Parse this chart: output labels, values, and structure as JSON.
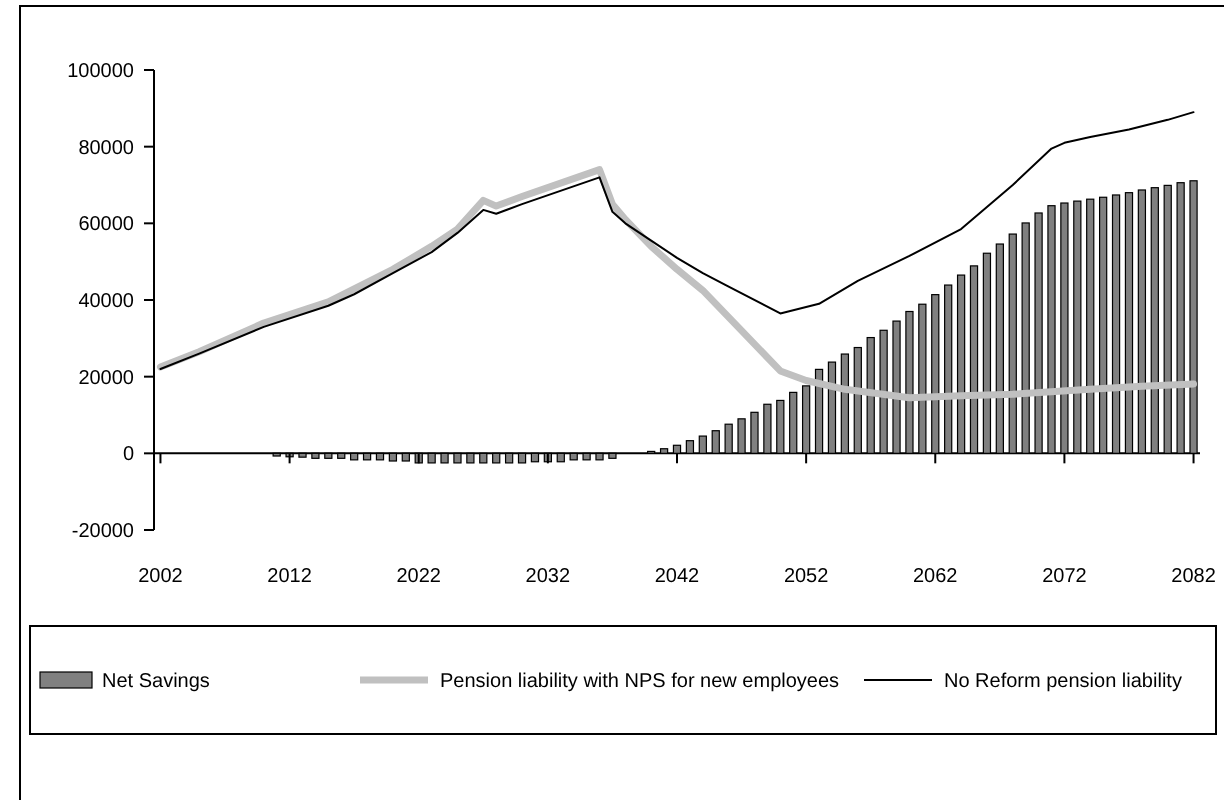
{
  "chart_data": {
    "type": "bar",
    "series": [
      {
        "name": "Net Savings",
        "color": "#808080",
        "x": [
          2011,
          2012,
          2013,
          2014,
          2015,
          2016,
          2017,
          2018,
          2019,
          2020,
          2021,
          2022,
          2023,
          2024,
          2025,
          2026,
          2027,
          2028,
          2029,
          2030,
          2031,
          2032,
          2033,
          2034,
          2035,
          2036,
          2037,
          2040,
          2041,
          2042,
          2043,
          2044,
          2045,
          2046,
          2047,
          2048,
          2049,
          2050,
          2051,
          2052,
          2053,
          2054,
          2055,
          2056,
          2057,
          2058,
          2059,
          2060,
          2061,
          2062,
          2063,
          2064,
          2065,
          2066,
          2067,
          2068,
          2069,
          2070,
          2071,
          2072,
          2073,
          2074,
          2075,
          2076,
          2077,
          2078,
          2079,
          2080,
          2081,
          2082
        ],
        "values": [
          -700,
          -900,
          -1000,
          -1300,
          -1300,
          -1300,
          -1700,
          -1700,
          -1700,
          -2000,
          -2000,
          -2500,
          -2500,
          -2500,
          -2500,
          -2500,
          -2500,
          -2500,
          -2500,
          -2500,
          -2200,
          -2200,
          -2200,
          -1700,
          -1700,
          -1700,
          -1300,
          500,
          1200,
          2100,
          3300,
          4500,
          5900,
          7600,
          9000,
          10700,
          12800,
          13800,
          15900,
          17600,
          21900,
          23800,
          25900,
          27600,
          30200,
          32100,
          34500,
          37000,
          38900,
          41400,
          43900,
          46500,
          48900,
          52200,
          54600,
          57200,
          60100,
          62700,
          64600,
          65300,
          65800,
          66300,
          66800,
          67400,
          68000,
          68700,
          69300,
          69900,
          70600,
          71100
        ]
      },
      {
        "name": "Pension liability with NPS for new employees",
        "type": "line",
        "color": "#c0c0c0",
        "x": [
          2002,
          2005,
          2010,
          2015,
          2020,
          2023,
          2025,
          2027,
          2028,
          2030,
          2036,
          2037,
          2038,
          2040,
          2042,
          2044,
          2047,
          2050,
          2052,
          2055,
          2060,
          2064,
          2068,
          2074,
          2078,
          2082
        ],
        "values": [
          22500,
          26500,
          34000,
          39500,
          48000,
          54000,
          58500,
          66000,
          64500,
          67000,
          74000,
          65000,
          61000,
          54000,
          48000,
          42500,
          32000,
          21500,
          19000,
          16700,
          14500,
          15000,
          15400,
          16700,
          17500,
          18100
        ]
      },
      {
        "name": "No Reform pension liability",
        "type": "line",
        "color": "#000000",
        "x": [
          2002,
          2005,
          2010,
          2015,
          2017,
          2020,
          2023,
          2025,
          2027,
          2028,
          2030,
          2036,
          2037,
          2038,
          2040,
          2042,
          2044,
          2046,
          2050,
          2053,
          2056,
          2060,
          2064,
          2068,
          2071,
          2072,
          2074,
          2077,
          2080,
          2082
        ],
        "values": [
          22000,
          26000,
          33000,
          38500,
          41500,
          47000,
          52500,
          57500,
          63500,
          62500,
          65000,
          72000,
          63000,
          60000,
          55500,
          51000,
          47000,
          43500,
          36500,
          39000,
          45000,
          51500,
          58500,
          70000,
          79500,
          81000,
          82500,
          84500,
          87000,
          89000
        ]
      }
    ],
    "xlim": [
      2001.5,
      2082.5
    ],
    "xticks": [
      2002,
      2012,
      2022,
      2032,
      2042,
      2052,
      2062,
      2072,
      2082
    ],
    "ylim": [
      -20000,
      100000
    ],
    "yticks": [
      -20000,
      0,
      20000,
      40000,
      60000,
      80000,
      100000
    ],
    "legend": "bottom"
  }
}
